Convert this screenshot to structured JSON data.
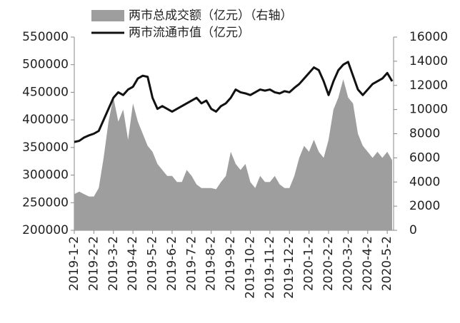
{
  "chart_data": {
    "type": "line-area",
    "categories": [
      "2019-1-2",
      null,
      null,
      null,
      "2019-2-2",
      null,
      null,
      null,
      "2019-3-2",
      null,
      null,
      null,
      "2019-4-2",
      null,
      null,
      null,
      "2019-5-2",
      null,
      null,
      null,
      "2019-6-2",
      null,
      null,
      null,
      "2019-7-2",
      null,
      null,
      null,
      "2019-8-2",
      null,
      null,
      null,
      "2019-9-2",
      null,
      null,
      null,
      "2019-10-2",
      null,
      null,
      null,
      "2019-11-2",
      null,
      null,
      null,
      "2019-12-2",
      null,
      null,
      null,
      "2020-1-2",
      null,
      null,
      null,
      "2020-2-2",
      null,
      null,
      null,
      "2020-3-2",
      null,
      null,
      null,
      "2020-4-2",
      null,
      null,
      null,
      "2020-5-2",
      null
    ],
    "series": [
      {
        "name": "两市总成交额（亿元）（右轴）",
        "color": "#9e9e9e",
        "axis": "y2",
        "kind": "area",
        "values": [
          3000,
          3200,
          3000,
          2800,
          2800,
          3500,
          6000,
          9000,
          11000,
          9000,
          10000,
          7500,
          10500,
          9000,
          8000,
          7000,
          6500,
          5500,
          5000,
          4500,
          4500,
          4000,
          4000,
          5000,
          4500,
          3800,
          3500,
          3500,
          3500,
          3400,
          4000,
          4500,
          6500,
          5500,
          5000,
          5500,
          4000,
          3500,
          4500,
          4000,
          4000,
          4500,
          3800,
          3500,
          3500,
          4500,
          6000,
          7000,
          6500,
          7500,
          6500,
          6000,
          7500,
          10000,
          11000,
          12500,
          11000,
          10500,
          8000,
          7000,
          6500,
          6000,
          6500,
          6000,
          6500,
          5800
        ]
      },
      {
        "name": "两市流通市值（亿元）",
        "color": "#111111",
        "axis": "y",
        "kind": "line",
        "values": [
          360000,
          362000,
          368000,
          372000,
          375000,
          380000,
          400000,
          420000,
          440000,
          450000,
          445000,
          455000,
          460000,
          475000,
          480000,
          478000,
          440000,
          420000,
          425000,
          420000,
          415000,
          420000,
          425000,
          430000,
          435000,
          440000,
          430000,
          435000,
          420000,
          415000,
          425000,
          430000,
          440000,
          455000,
          450000,
          448000,
          445000,
          450000,
          455000,
          453000,
          455000,
          450000,
          448000,
          452000,
          450000,
          458000,
          465000,
          475000,
          485000,
          495000,
          490000,
          470000,
          445000,
          470000,
          490000,
          500000,
          505000,
          480000,
          455000,
          445000,
          455000,
          465000,
          470000,
          475000,
          485000,
          470000
        ]
      }
    ],
    "ylim": [
      200000,
      550000
    ],
    "yticks": [
      200000,
      250000,
      300000,
      350000,
      400000,
      450000,
      500000,
      550000
    ],
    "y2lim": [
      0,
      16000
    ],
    "y2ticks": [
      0,
      2000,
      4000,
      6000,
      8000,
      10000,
      12000,
      14000,
      16000
    ]
  }
}
